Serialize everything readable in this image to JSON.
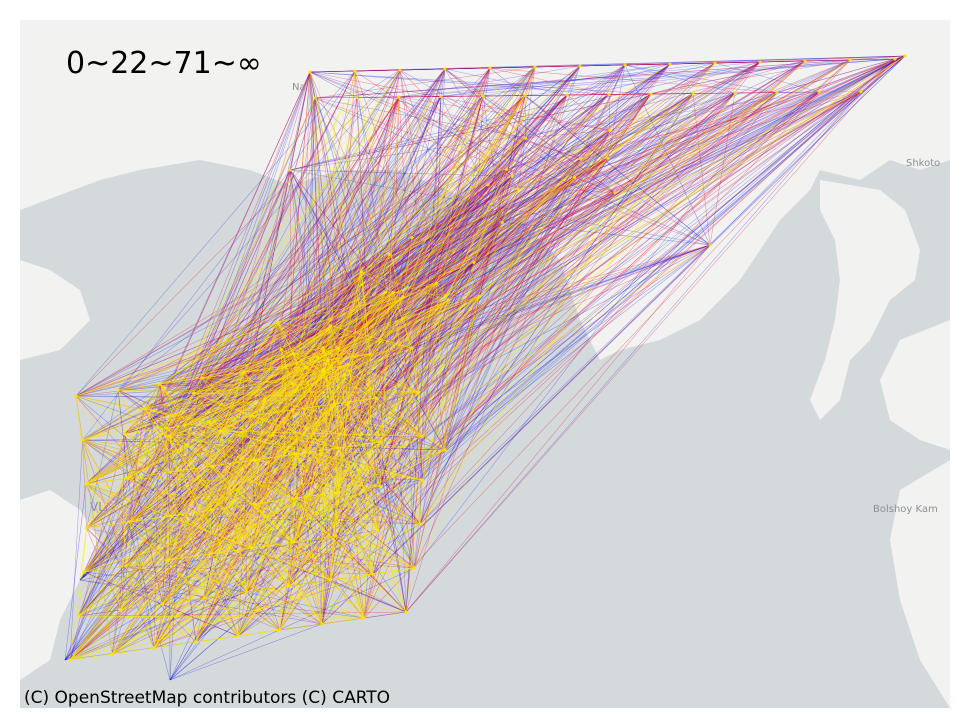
{
  "legend": {
    "text": "0~22~71~∞"
  },
  "attribution": {
    "text": "(C) OpenStreetMap contributors (C) CARTO"
  },
  "places": {
    "shkotovo": "Shkoto",
    "bolshoy_kamen": "Bolshoy Kam",
    "nakhodka_partial": "Na",
    "vladivostok_partial": "VL"
  },
  "colors": {
    "water": "#d4dadc",
    "land": "#f2f3f1",
    "low": "#1a1adc",
    "mid": "#e0103a",
    "high": "#ffe600"
  }
}
